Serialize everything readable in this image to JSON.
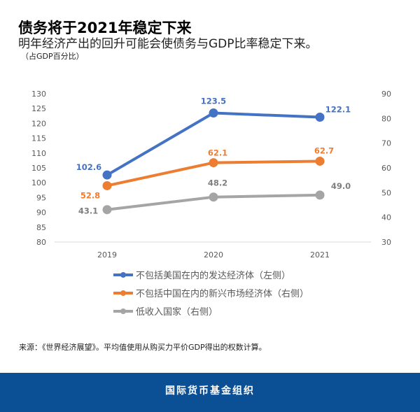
{
  "header": {
    "title": "债务将于2021年稳定下来",
    "subtitle": "明年经济产出的回升可能会使债务与GDP比率稳定下来。",
    "unit": "（占GDP百分比）"
  },
  "chart_data": {
    "type": "line",
    "categories": [
      "2019",
      "2020",
      "2021"
    ],
    "y_left": {
      "range": [
        80,
        130
      ],
      "ticks": [
        "80",
        "85",
        "90",
        "95",
        "100",
        "105",
        "110",
        "115",
        "120",
        "125",
        "130"
      ]
    },
    "y_right": {
      "range": [
        30,
        90
      ],
      "ticks": [
        "30",
        "40",
        "50",
        "60",
        "70",
        "80",
        "90"
      ]
    },
    "grid": false,
    "legend_position": "bottom",
    "series": [
      {
        "name": "不包括美国在内的发达经济体（左侧）",
        "axis": "left",
        "color": "#4472c4",
        "values": [
          102.6,
          123.5,
          122.1
        ],
        "labels": [
          "102.6",
          "123.5",
          "122.1"
        ]
      },
      {
        "name": "不包括中国在内的新兴市场经济体（右侧）",
        "axis": "right",
        "color": "#ed7d31",
        "values": [
          52.8,
          62.1,
          62.7
        ],
        "labels": [
          "52.8",
          "62.1",
          "62.7"
        ]
      },
      {
        "name": "低收入国家（右侧）",
        "axis": "right",
        "color": "#a5a5a5",
        "values": [
          43.1,
          48.2,
          49.0
        ],
        "labels": [
          "43.1",
          "48.2",
          "49.0"
        ]
      }
    ]
  },
  "source": "来源：《世界经济展望》。平均值使用从购买力平价GDP得出的权数计算。",
  "footer": "国际货币基金组织"
}
